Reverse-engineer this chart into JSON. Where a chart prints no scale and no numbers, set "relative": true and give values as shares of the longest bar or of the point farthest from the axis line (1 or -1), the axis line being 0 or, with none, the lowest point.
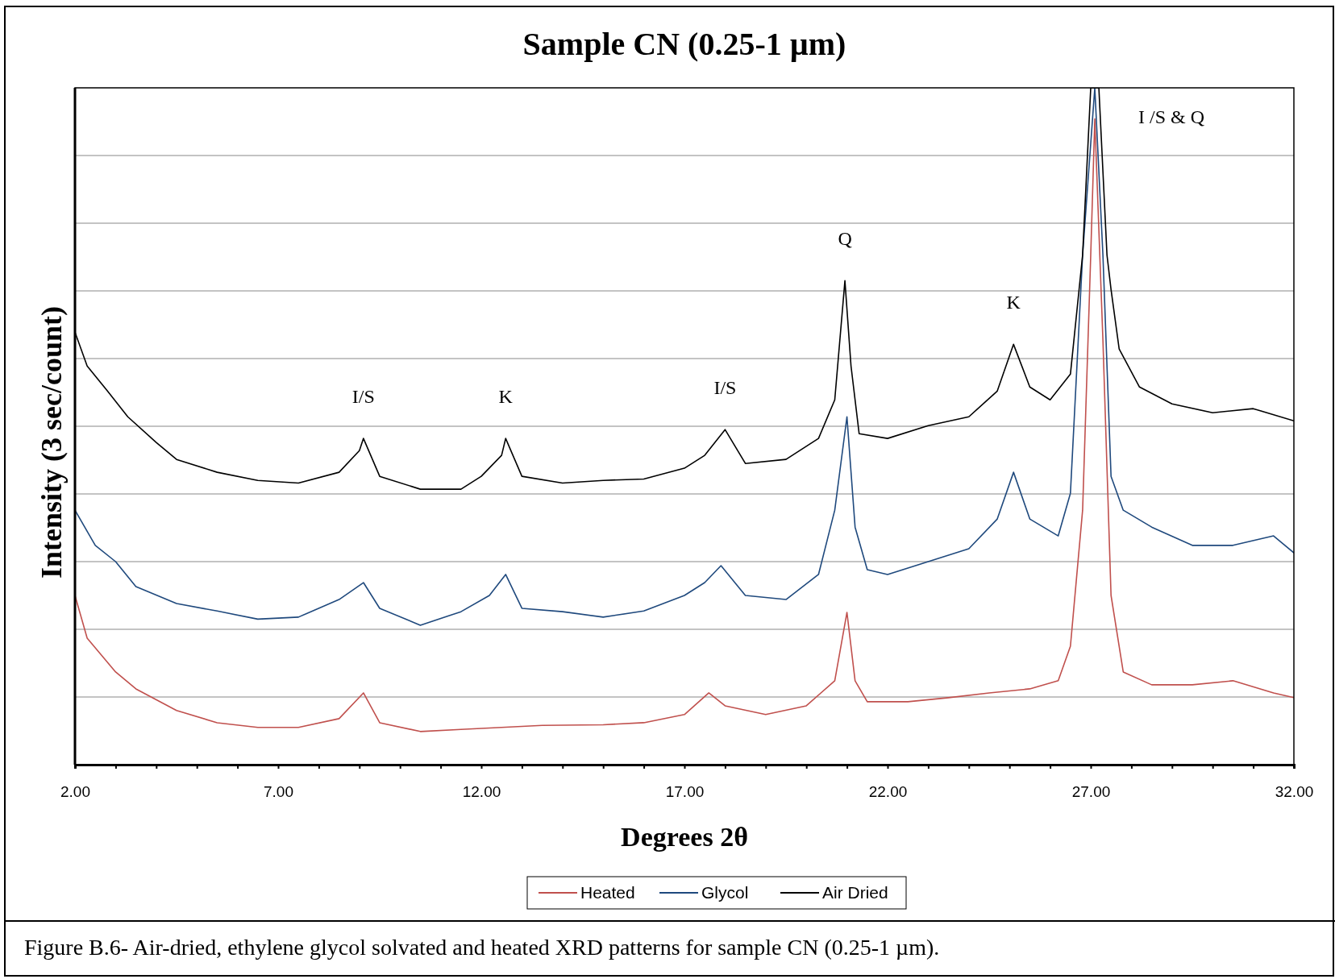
{
  "chart_data": {
    "type": "line",
    "title": "Sample CN (0.25-1 µm)",
    "xlabel": "Degrees 2θ",
    "ylabel": "Intensity (3 sec/count)",
    "relative": true,
    "grid": "y",
    "legend": "bottom",
    "line_style": "solid",
    "marker": "none",
    "xlim": [
      2,
      32
    ],
    "xticks": [
      {
        "value": 2,
        "label": "2.00"
      },
      {
        "value": 3,
        "label": null
      },
      {
        "value": 4,
        "label": null
      },
      {
        "value": 5,
        "label": null
      },
      {
        "value": 6,
        "label": null
      },
      {
        "value": 7,
        "label": "7.00"
      },
      {
        "value": 8,
        "label": null
      },
      {
        "value": 9,
        "label": null
      },
      {
        "value": 10,
        "label": null
      },
      {
        "value": 11,
        "label": null
      },
      {
        "value": 12,
        "label": "12.00"
      },
      {
        "value": 13,
        "label": null
      },
      {
        "value": 14,
        "label": null
      },
      {
        "value": 15,
        "label": null
      },
      {
        "value": 16,
        "label": null
      },
      {
        "value": 17,
        "label": "17.00"
      },
      {
        "value": 18,
        "label": null
      },
      {
        "value": 19,
        "label": null
      },
      {
        "value": 20,
        "label": null
      },
      {
        "value": 21,
        "label": null
      },
      {
        "value": 22,
        "label": "22.00"
      },
      {
        "value": 23,
        "label": null
      },
      {
        "value": 24,
        "label": null
      },
      {
        "value": 25,
        "label": null
      },
      {
        "value": 26,
        "label": null
      },
      {
        "value": 27,
        "label": "27.00"
      },
      {
        "value": 28,
        "label": null
      },
      {
        "value": 29,
        "label": null
      },
      {
        "value": 30,
        "label": null
      },
      {
        "value": 31,
        "label": null
      },
      {
        "value": 32,
        "label": "32.00"
      }
    ],
    "series": [
      {
        "name": "Heated",
        "color": "#c0504d",
        "x": [
          2,
          2.3,
          3,
          3.5,
          4.5,
          5.5,
          6.5,
          7.5,
          8.5,
          9.1,
          9.5,
          10.5,
          11.5,
          12.5,
          13.5,
          15,
          16,
          17,
          17.6,
          18,
          19,
          20,
          20.7,
          21,
          21.2,
          21.5,
          22.5,
          23.5,
          24.5,
          25.5,
          26.2,
          26.5,
          26.8,
          27,
          27.1,
          27.3,
          27.5,
          27.8,
          28.5,
          29.5,
          30.5,
          31.5,
          32
        ],
        "values": [
          0.25,
          0.187,
          0.137,
          0.112,
          0.08,
          0.062,
          0.055,
          0.055,
          0.068,
          0.106,
          0.062,
          0.049,
          0.052,
          0.055,
          0.058,
          0.059,
          0.062,
          0.074,
          0.106,
          0.087,
          0.074,
          0.087,
          0.124,
          0.225,
          0.124,
          0.093,
          0.093,
          0.099,
          0.106,
          0.112,
          0.124,
          0.175,
          0.376,
          0.753,
          0.954,
          0.627,
          0.25,
          0.137,
          0.118,
          0.118,
          0.124,
          0.106,
          0.099
        ]
      },
      {
        "name": "Glycol",
        "color": "#1f497d",
        "x": [
          2,
          2.5,
          3,
          3.5,
          4.5,
          5.5,
          6.5,
          7.5,
          8.5,
          9.1,
          9.5,
          10.5,
          11.5,
          12.2,
          12.6,
          13,
          14,
          15,
          16,
          17,
          17.5,
          17.9,
          18.5,
          19.5,
          20.3,
          20.7,
          21,
          21.2,
          21.5,
          22,
          23,
          24,
          24.7,
          25.1,
          25.5,
          26.2,
          26.5,
          26.8,
          27.1,
          27.3,
          27.5,
          27.8,
          28.5,
          29.5,
          30.5,
          31.5,
          32
        ],
        "values": [
          0.376,
          0.324,
          0.3,
          0.263,
          0.238,
          0.227,
          0.215,
          0.218,
          0.244,
          0.269,
          0.231,
          0.206,
          0.226,
          0.25,
          0.281,
          0.231,
          0.226,
          0.218,
          0.227,
          0.25,
          0.269,
          0.294,
          0.25,
          0.244,
          0.281,
          0.376,
          0.514,
          0.351,
          0.288,
          0.281,
          0.3,
          0.319,
          0.363,
          0.432,
          0.363,
          0.338,
          0.401,
          0.753,
          1,
          0.753,
          0.426,
          0.376,
          0.351,
          0.324,
          0.324,
          0.338,
          0.313
        ]
      },
      {
        "name": "Air Dried",
        "color": "#000000",
        "x": [
          2,
          2.3,
          2.8,
          3.3,
          4,
          4.5,
          5.5,
          6.5,
          7.5,
          8.5,
          9,
          9.1,
          9.5,
          10.5,
          11.5,
          12,
          12.5,
          12.6,
          13,
          14,
          15,
          16,
          17,
          17.5,
          18,
          18.5,
          19.5,
          20.3,
          20.7,
          20.95,
          21.1,
          21.3,
          22,
          23,
          24,
          24.7,
          25.1,
          25.5,
          26,
          26.5,
          26.8,
          27,
          27.2,
          27.4,
          27.5,
          27.7,
          28.2,
          29,
          30,
          31,
          32
        ],
        "values": [
          0.639,
          0.589,
          0.552,
          0.514,
          0.476,
          0.451,
          0.432,
          0.42,
          0.416,
          0.432,
          0.464,
          0.482,
          0.426,
          0.407,
          0.407,
          0.426,
          0.457,
          0.482,
          0.426,
          0.416,
          0.42,
          0.422,
          0.438,
          0.457,
          0.495,
          0.445,
          0.451,
          0.482,
          0.539,
          0.715,
          0.589,
          0.489,
          0.482,
          0.501,
          0.514,
          0.552,
          0.621,
          0.558,
          0.539,
          0.577,
          0.753,
          1,
          1,
          0.753,
          0.702,
          0.614,
          0.558,
          0.533,
          0.52,
          0.526,
          0.508
        ]
      }
    ],
    "annotations": [
      {
        "text": "I/S",
        "x": 9.1,
        "y": 0.482
      },
      {
        "text": "K",
        "x": 12.6,
        "y": 0.482
      },
      {
        "text": "I/S",
        "x": 18,
        "y": 0.495
      },
      {
        "text": "Q",
        "x": 20.95,
        "y": 0.715
      },
      {
        "text": "K",
        "x": 25.1,
        "y": 0.621
      },
      {
        "text": "I /S & Q",
        "x": 27.1,
        "y": 0.954
      },
      "Figure B.6- Air-dried, ethylene glycol solvated and heated XRD patterns for sample CN (0.25-1 µm)."
    ]
  }
}
